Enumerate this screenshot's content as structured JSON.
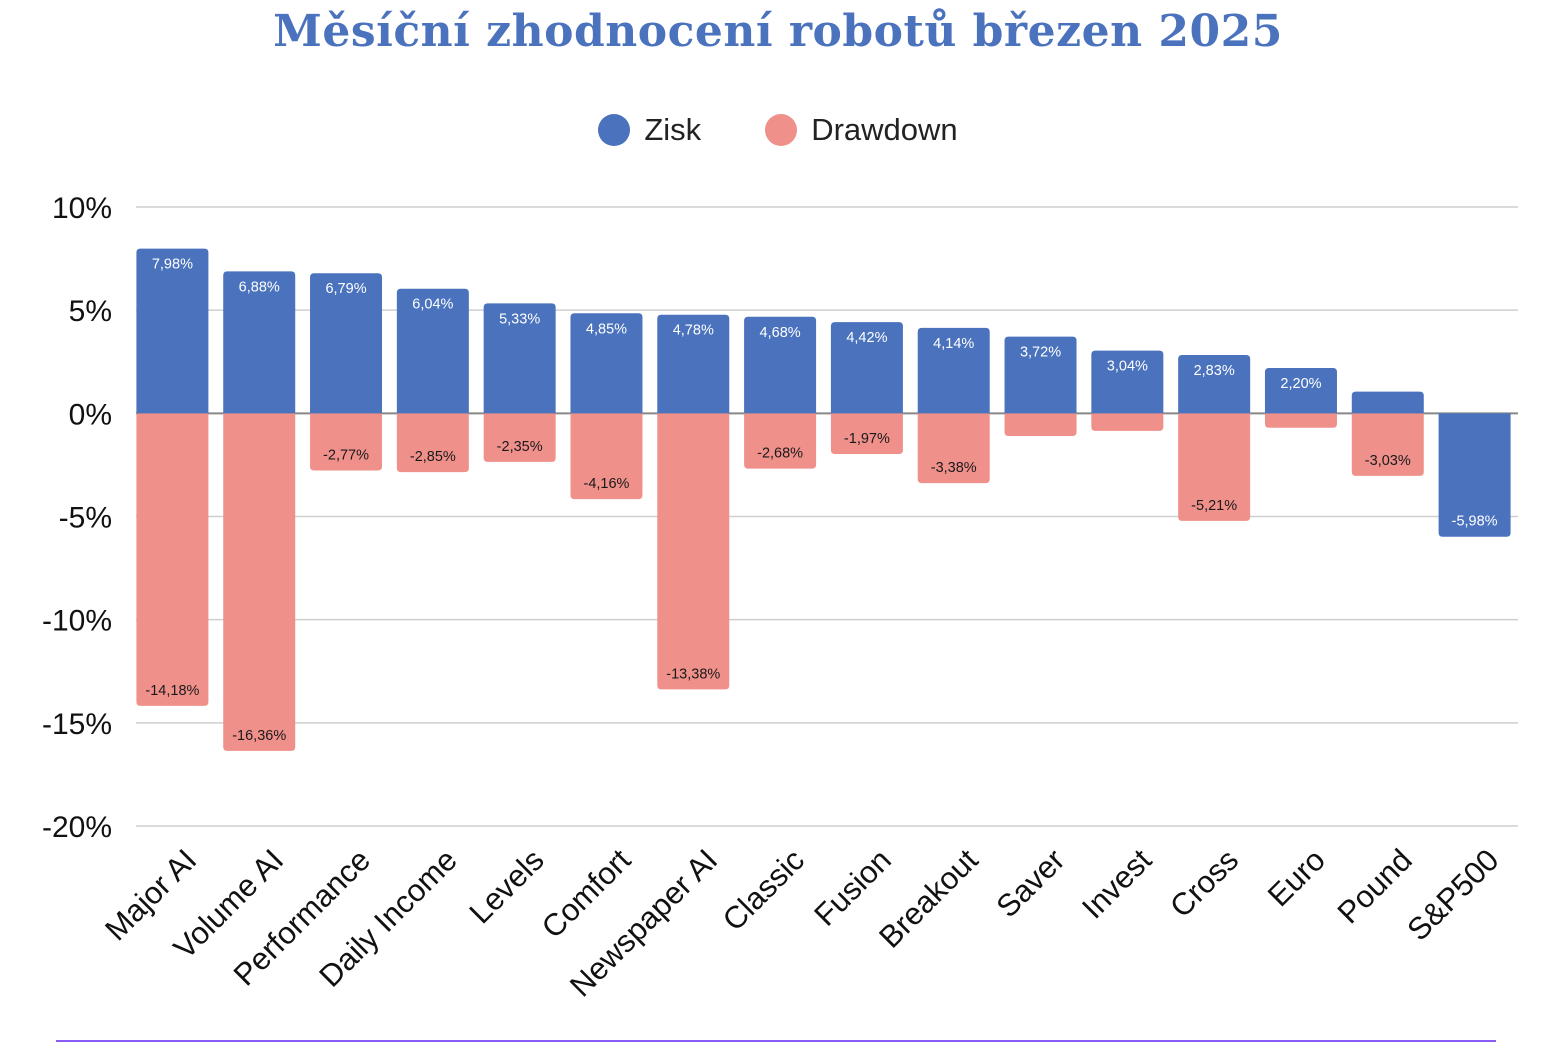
{
  "chart_data": {
    "type": "bar",
    "title": "Měsíční zhodnocení robotů březen 2025",
    "legend": [
      {
        "name": "Zisk",
        "color": "#4a72bd"
      },
      {
        "name": "Drawdown",
        "color": "#f0908b"
      }
    ],
    "ylim": [
      -20,
      10
    ],
    "yticks": [
      10,
      5,
      0,
      -5,
      -10,
      -15,
      -20
    ],
    "ytick_labels": [
      "10%",
      "5%",
      "0%",
      "-5%",
      "-10%",
      "-15%",
      "-20%"
    ],
    "categories": [
      "Major AI",
      "Volume AI",
      "Performance",
      "Daily Income",
      "Levels",
      "Comfort",
      "Newspaper AI",
      "Classic",
      "Fusion",
      "Breakout",
      "Saver",
      "Invest",
      "Cross",
      "Euro",
      "Pound",
      "S&P500"
    ],
    "series": [
      {
        "name": "Zisk",
        "color": "#4a72bd",
        "values": [
          7.98,
          6.88,
          6.79,
          6.04,
          5.33,
          4.85,
          4.78,
          4.68,
          4.42,
          4.14,
          3.72,
          3.04,
          2.83,
          2.2,
          1.05,
          -5.98
        ],
        "labels": [
          "7,98%",
          "6,88%",
          "6,79%",
          "6,04%",
          "5,33%",
          "4,85%",
          "4,78%",
          "4,68%",
          "4,42%",
          "4,14%",
          "3,72%",
          "3,04%",
          "2,83%",
          "2,20%",
          "",
          "-5,98%"
        ]
      },
      {
        "name": "Drawdown",
        "color": "#f0908b",
        "values": [
          -14.18,
          -16.36,
          -2.77,
          -2.85,
          -2.35,
          -4.16,
          -13.38,
          -2.68,
          -1.97,
          -3.38,
          -1.1,
          -0.85,
          -5.21,
          -0.7,
          -3.03,
          null
        ],
        "labels": [
          "-14,18%",
          "-16,36%",
          "-2,77%",
          "-2,85%",
          "-2,35%",
          "-4,16%",
          "-13,38%",
          "-2,68%",
          "-1,97%",
          "-3,38%",
          "",
          "",
          "-5,21%",
          "",
          "-3,03%",
          ""
        ]
      }
    ],
    "grid": true
  },
  "colors": {
    "zisk": "#4a72bd",
    "drawdown": "#f0908b",
    "grid": "#cfcfcf",
    "axis_text": "#111111"
  }
}
